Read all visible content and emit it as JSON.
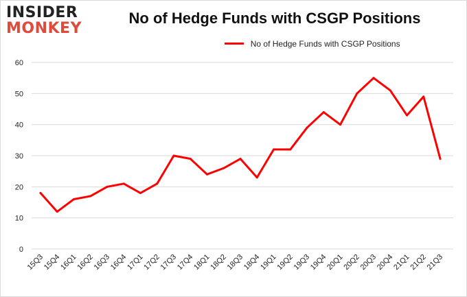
{
  "logo": {
    "line1": "INSIDER",
    "line2": "MONKEY"
  },
  "chart_data": {
    "type": "line",
    "title": "No of Hedge Funds with CSGP Positions",
    "xlabel": "",
    "ylabel": "",
    "ylim": [
      0,
      60
    ],
    "yticks": [
      0,
      10,
      20,
      30,
      40,
      50,
      60
    ],
    "grid": true,
    "legend_position": "top-center",
    "categories": [
      "15Q3",
      "15Q4",
      "16Q1",
      "16Q2",
      "16Q3",
      "16Q4",
      "17Q1",
      "17Q2",
      "17Q3",
      "17Q4",
      "18Q1",
      "18Q2",
      "18Q3",
      "18Q4",
      "19Q1",
      "19Q2",
      "19Q3",
      "19Q4",
      "20Q1",
      "20Q2",
      "20Q3",
      "20Q4",
      "21Q1",
      "21Q2",
      "21Q3"
    ],
    "series": [
      {
        "name": "No of Hedge Funds with CSGP Positions",
        "color": "#ff0000",
        "values": [
          18,
          12,
          16,
          17,
          20,
          21,
          18,
          21,
          30,
          29,
          24,
          26,
          29,
          23,
          32,
          32,
          39,
          44,
          40,
          50,
          55,
          51,
          43,
          49,
          29
        ]
      }
    ]
  }
}
